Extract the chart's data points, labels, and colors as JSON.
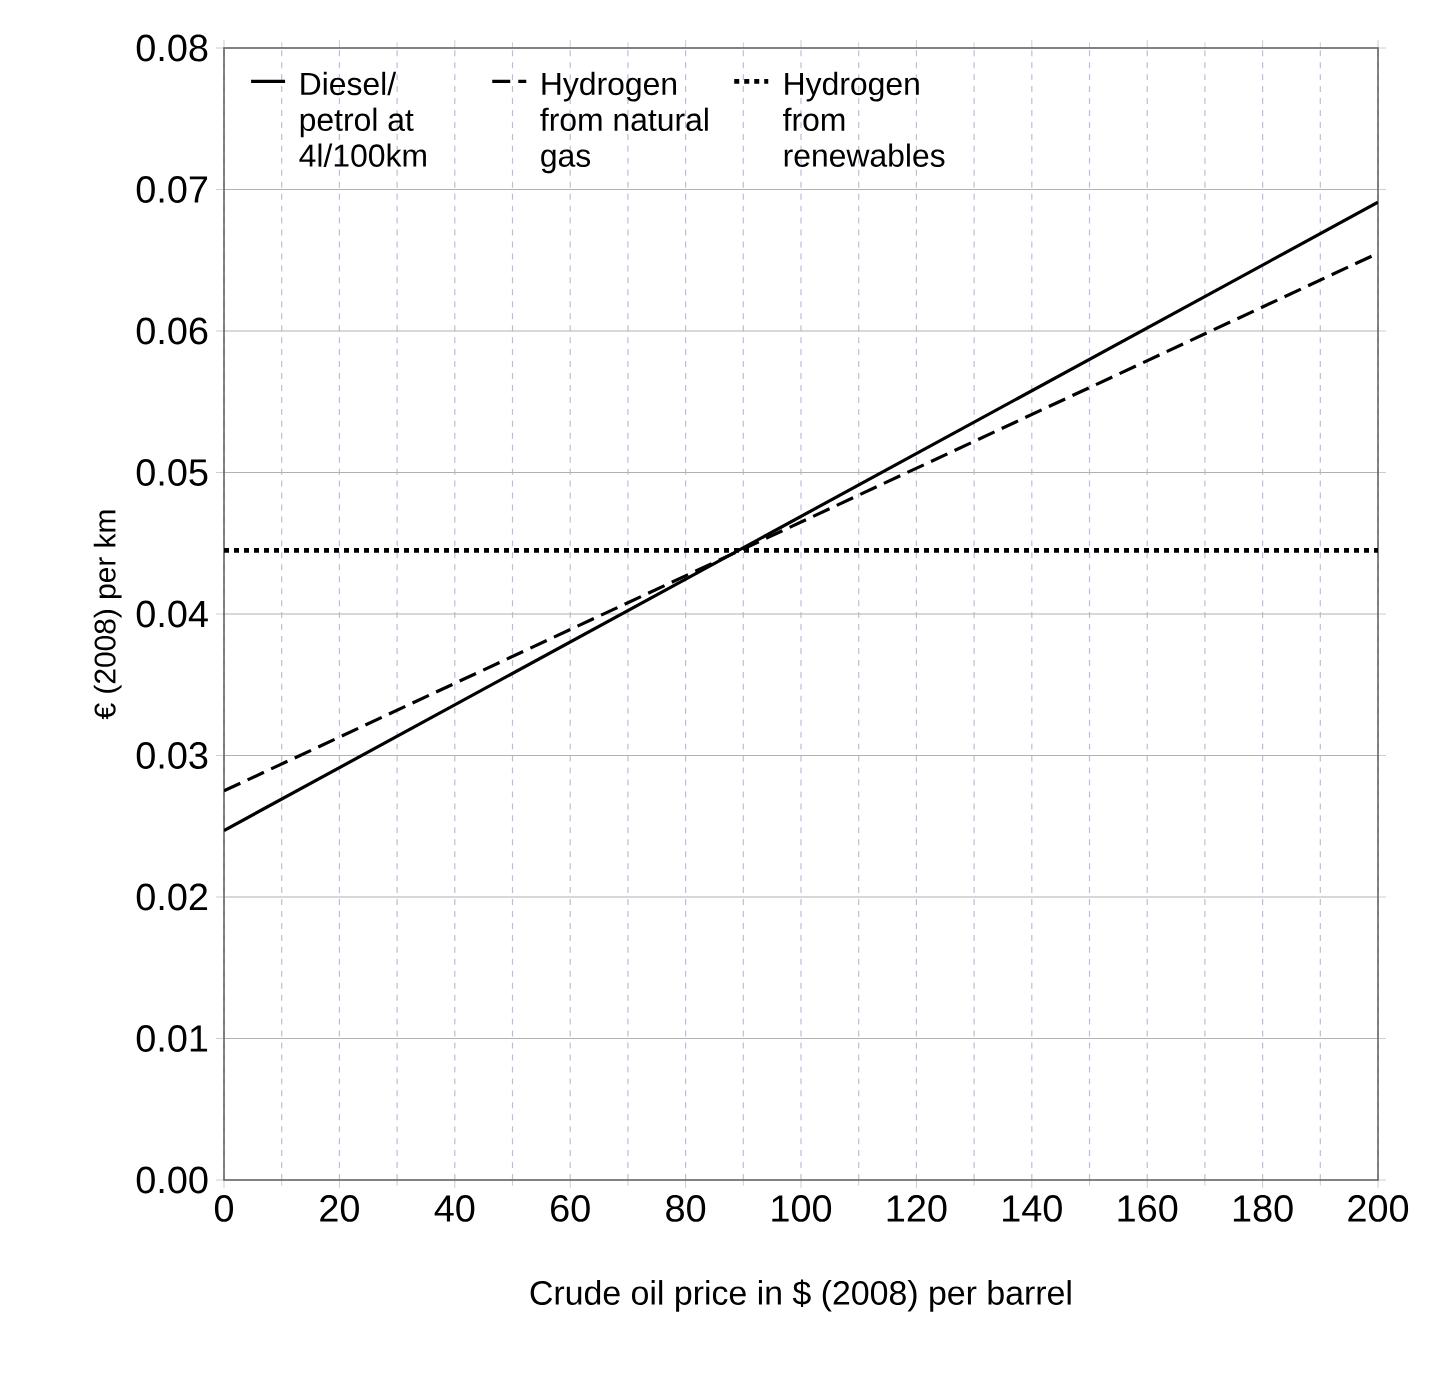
{
  "chart_data": {
    "type": "line",
    "xlabel": "Crude oil price in $ (2008) per barrel",
    "ylabel": "€ (2008) per km",
    "x": [
      0,
      200
    ],
    "series": [
      {
        "name": "Diesel/ petrol at 4l/100km",
        "color": "#000000",
        "line_style": "solid",
        "values": [
          0.0247,
          0.0691
        ]
      },
      {
        "name": "Hydrogen from natural gas",
        "color": "#000000",
        "line_style": "dashed",
        "values": [
          0.0275,
          0.0655
        ]
      },
      {
        "name": "Hydrogen from renewables",
        "color": "#000000",
        "line_style": "dotted",
        "values": [
          0.0445,
          0.0445
        ]
      }
    ],
    "xlim": [
      0,
      200
    ],
    "ylim": [
      0,
      0.08
    ],
    "xticks": [
      0,
      20,
      40,
      60,
      80,
      100,
      120,
      140,
      160,
      180,
      200
    ],
    "yticks": [
      {
        "value": 0,
        "label": "0.00"
      },
      {
        "value": 0.01,
        "label": "0.01"
      },
      {
        "value": 0.02,
        "label": "0.02"
      },
      {
        "value": 0.03,
        "label": "0.03"
      },
      {
        "value": 0.04,
        "label": "0.04"
      },
      {
        "value": 0.05,
        "label": "0.05"
      },
      {
        "value": 0.06,
        "label": "0.06"
      },
      {
        "value": 0.07,
        "label": "0.07"
      },
      {
        "value": 0.08,
        "label": "0.08"
      }
    ],
    "grid": true,
    "legend": "top",
    "marker": "none"
  }
}
